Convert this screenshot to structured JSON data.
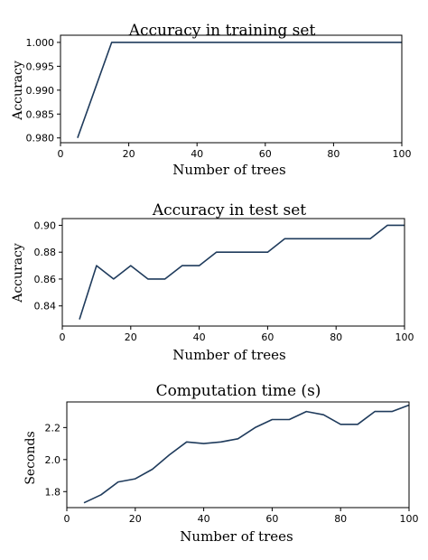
{
  "chart_data": [
    {
      "type": "line",
      "title": "Accuracy in training set",
      "xlabel": "Number of trees",
      "ylabel": "Accuracy",
      "xlim": [
        0,
        100
      ],
      "ylim": [
        0.979,
        1.0015
      ],
      "xticks": [
        0,
        20,
        40,
        60,
        80,
        100
      ],
      "xtick_labels": [
        "0",
        "20",
        "40",
        "60",
        "80",
        "100"
      ],
      "yticks": [
        0.98,
        0.985,
        0.99,
        0.995,
        1.0
      ],
      "ytick_labels": [
        "0.980",
        "0.985",
        "0.990",
        "0.995",
        "1.000"
      ],
      "grid": false,
      "series": [
        {
          "color": "#1f3b5c",
          "x": [
            5,
            10,
            15,
            20,
            25,
            30,
            35,
            40,
            45,
            50,
            55,
            60,
            65,
            70,
            75,
            80,
            85,
            90,
            95,
            100
          ],
          "y": [
            0.98,
            0.99,
            1.0,
            1.0,
            1.0,
            1.0,
            1.0,
            1.0,
            1.0,
            1.0,
            1.0,
            1.0,
            1.0,
            1.0,
            1.0,
            1.0,
            1.0,
            1.0,
            1.0,
            1.0
          ]
        }
      ]
    },
    {
      "type": "line",
      "title": "Accuracy in test set",
      "xlabel": "Number of trees",
      "ylabel": "Accuracy",
      "xlim": [
        0,
        100
      ],
      "ylim": [
        0.825,
        0.905
      ],
      "xticks": [
        0,
        20,
        40,
        60,
        80,
        100
      ],
      "xtick_labels": [
        "0",
        "20",
        "40",
        "60",
        "80",
        "100"
      ],
      "yticks": [
        0.84,
        0.86,
        0.88,
        0.9
      ],
      "ytick_labels": [
        "0.84",
        "0.86",
        "0.88",
        "0.90"
      ],
      "grid": false,
      "series": [
        {
          "color": "#1f3b5c",
          "x": [
            5,
            10,
            15,
            20,
            25,
            30,
            35,
            40,
            45,
            50,
            55,
            60,
            65,
            70,
            75,
            80,
            85,
            90,
            95,
            100
          ],
          "y": [
            0.83,
            0.87,
            0.86,
            0.87,
            0.86,
            0.86,
            0.87,
            0.87,
            0.88,
            0.88,
            0.88,
            0.88,
            0.89,
            0.89,
            0.89,
            0.89,
            0.89,
            0.89,
            0.9,
            0.9
          ]
        }
      ]
    },
    {
      "type": "line",
      "title": "Computation time (s)",
      "xlabel": "Number of trees",
      "ylabel": "Seconds",
      "xlim": [
        0,
        100
      ],
      "ylim": [
        1.7,
        2.36
      ],
      "xticks": [
        0,
        20,
        40,
        60,
        80,
        100
      ],
      "xtick_labels": [
        "0",
        "20",
        "40",
        "60",
        "80",
        "100"
      ],
      "yticks": [
        1.8,
        2.0,
        2.2
      ],
      "ytick_labels": [
        "1.8",
        "2.0",
        "2.2"
      ],
      "grid": false,
      "series": [
        {
          "color": "#1f3b5c",
          "x": [
            5,
            10,
            15,
            20,
            25,
            30,
            35,
            40,
            45,
            50,
            55,
            60,
            65,
            70,
            75,
            80,
            85,
            90,
            95,
            100
          ],
          "y": [
            1.73,
            1.78,
            1.86,
            1.88,
            1.94,
            2.03,
            2.11,
            2.1,
            2.11,
            2.13,
            2.2,
            2.25,
            2.25,
            2.3,
            2.28,
            2.22,
            2.22,
            2.3,
            2.3,
            2.34
          ]
        }
      ]
    }
  ]
}
